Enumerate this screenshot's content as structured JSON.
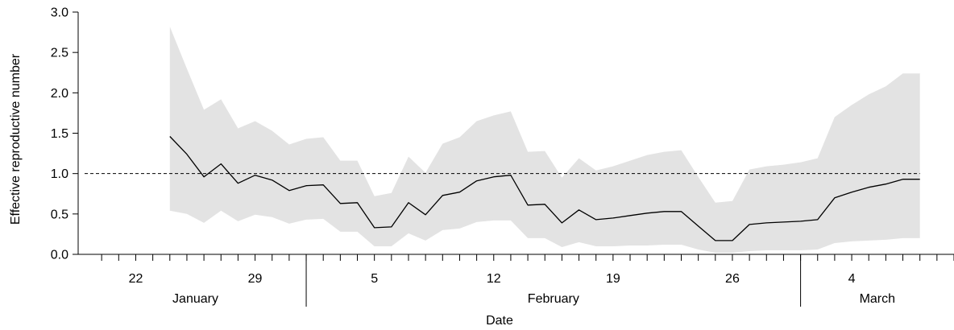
{
  "chart_data": {
    "type": "line",
    "xlabel": "Date",
    "ylabel": "Effective reproductive number",
    "ylim": [
      0,
      3
    ],
    "yticks": [
      "0.0",
      "0.5",
      "1.0",
      "1.5",
      "2.0",
      "2.5",
      "3.0"
    ],
    "xlim": [
      "2020-01-19",
      "2020-03-10"
    ],
    "day_ticks": [
      {
        "date": "2020-01-22",
        "label": "22"
      },
      {
        "date": "2020-01-29",
        "label": "29"
      },
      {
        "date": "2020-02-05",
        "label": "5"
      },
      {
        "date": "2020-02-12",
        "label": "12"
      },
      {
        "date": "2020-02-19",
        "label": "19"
      },
      {
        "date": "2020-02-26",
        "label": "26"
      },
      {
        "date": "2020-03-04",
        "label": "4"
      }
    ],
    "months": [
      {
        "label": "January",
        "start": "2020-01-19",
        "end": "2020-02-01"
      },
      {
        "label": "February",
        "start": "2020-02-01",
        "end": "2020-03-01"
      },
      {
        "label": "March",
        "start": "2020-03-01",
        "end": "2020-03-10"
      }
    ],
    "reference_line": {
      "y": 1.0,
      "style": "dashed",
      "from": "2020-01-19",
      "to": "2020-03-08"
    },
    "band_color": "#e3e3e3",
    "line_color": "#000000",
    "series": [
      {
        "x": [
          "2020-01-24",
          "2020-01-25",
          "2020-01-26",
          "2020-01-27",
          "2020-01-28",
          "2020-01-29",
          "2020-01-30",
          "2020-01-31",
          "2020-02-01",
          "2020-02-02",
          "2020-02-03",
          "2020-02-04",
          "2020-02-05",
          "2020-02-06",
          "2020-02-07",
          "2020-02-08",
          "2020-02-09",
          "2020-02-10",
          "2020-02-11",
          "2020-02-12",
          "2020-02-13",
          "2020-02-14",
          "2020-02-15",
          "2020-02-16",
          "2020-02-17",
          "2020-02-18",
          "2020-02-19",
          "2020-02-20",
          "2020-02-21",
          "2020-02-22",
          "2020-02-23",
          "2020-02-24",
          "2020-02-25",
          "2020-02-26",
          "2020-02-27",
          "2020-02-28",
          "2020-02-29",
          "2020-03-01",
          "2020-03-02",
          "2020-03-03",
          "2020-03-04",
          "2020-03-05",
          "2020-03-06",
          "2020-03-07",
          "2020-03-08"
        ],
        "y": [
          1.46,
          1.24,
          0.96,
          1.12,
          0.88,
          0.98,
          0.92,
          0.79,
          0.85,
          0.86,
          0.63,
          0.64,
          0.33,
          0.34,
          0.64,
          0.49,
          0.73,
          0.77,
          0.91,
          0.96,
          0.98,
          0.61,
          0.62,
          0.39,
          0.55,
          0.43,
          0.45,
          0.48,
          0.51,
          0.53,
          0.53,
          0.35,
          0.17,
          0.17,
          0.37,
          0.39,
          0.4,
          0.41,
          0.43,
          0.7,
          0.77,
          0.83,
          0.87,
          0.93,
          0.93
        ],
        "lower": [
          0.54,
          0.5,
          0.39,
          0.54,
          0.41,
          0.49,
          0.46,
          0.38,
          0.43,
          0.44,
          0.28,
          0.28,
          0.1,
          0.1,
          0.26,
          0.17,
          0.3,
          0.32,
          0.4,
          0.42,
          0.42,
          0.2,
          0.2,
          0.09,
          0.15,
          0.1,
          0.1,
          0.11,
          0.11,
          0.12,
          0.12,
          0.06,
          0.02,
          0.02,
          0.04,
          0.05,
          0.05,
          0.05,
          0.06,
          0.14,
          0.16,
          0.17,
          0.18,
          0.2,
          0.2
        ],
        "upper": [
          2.82,
          2.3,
          1.79,
          1.92,
          1.56,
          1.65,
          1.53,
          1.36,
          1.43,
          1.45,
          1.16,
          1.16,
          0.72,
          0.76,
          1.21,
          1.01,
          1.37,
          1.45,
          1.65,
          1.72,
          1.77,
          1.27,
          1.28,
          0.95,
          1.19,
          1.04,
          1.09,
          1.16,
          1.23,
          1.27,
          1.29,
          0.96,
          0.64,
          0.66,
          1.05,
          1.09,
          1.11,
          1.14,
          1.19,
          1.7,
          1.85,
          1.98,
          2.08,
          2.24,
          2.24
        ]
      }
    ]
  }
}
